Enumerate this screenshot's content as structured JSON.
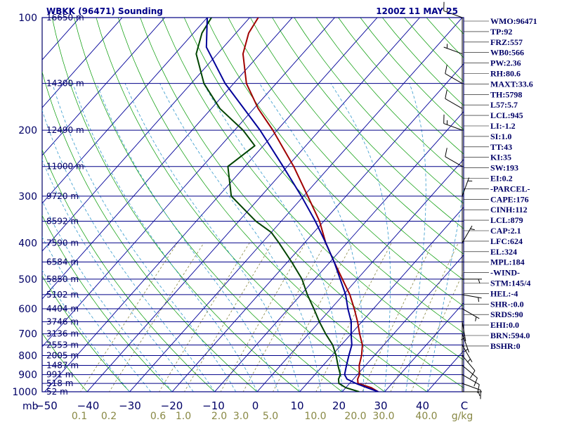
{
  "header": {
    "station": "WBKK (96471) Sounding",
    "time": "1200Z 11 MAY 25"
  },
  "axis": {
    "pressure_unit": "mb",
    "mixing_ratio_unit": "g/kg",
    "temp_ticks": [
      "−50",
      "−40",
      "−30",
      "−20",
      "−10",
      "0",
      "10",
      "20",
      "30",
      "40",
      "C"
    ],
    "mixing_ratio_ticks": [
      "0.1",
      "0.2",
      "0.6",
      "1.0",
      "2.0",
      "3.0",
      "5.0",
      "10.0",
      "20.0",
      "30.0",
      "40.0"
    ]
  },
  "indices": [
    "WMO:96471",
    "TP:92",
    "FRZ:557",
    "WB0:566",
    "PW:2.36",
    "RH:80.6",
    "MAXT:33.6",
    "TH:5798",
    "L57:5.7",
    "LCL:945",
    "LI:-1.2",
    "SI:1.0",
    "TT:43",
    "KI:35",
    "SW:193",
    "EI:0.2",
    "-PARCEL-",
    "CAPE:176",
    "CINH:112",
    "LCL:879",
    "CAP:2.1",
    "LFC:624",
    "EL:324",
    "MPL:184",
    "-WIND-",
    "STM:145/4",
    "HEL:-4",
    "SHR-:0.0",
    "SRDS:90",
    "EHI:0.0",
    "BRN:594.0",
    "BSHR:0"
  ],
  "chart_data": {
    "type": "line",
    "title": "WBKK (96471) Sounding",
    "ylabel": "mb",
    "xlabel": "C",
    "yscale": "log",
    "ylim": [
      1000,
      100
    ],
    "xlim": [
      -50,
      50
    ],
    "pressure_levels": [
      {
        "p": 1000,
        "label": "1000",
        "height": "52 m"
      },
      {
        "p": 950,
        "label": "",
        "height": "518 m"
      },
      {
        "p": 900,
        "label": "900",
        "height": "991 m"
      },
      {
        "p": 850,
        "label": "",
        "height": "1487 m"
      },
      {
        "p": 800,
        "label": "800",
        "height": "2005 m"
      },
      {
        "p": 750,
        "label": "",
        "height": "2553 m"
      },
      {
        "p": 700,
        "label": "700",
        "height": "3136 m"
      },
      {
        "p": 650,
        "label": "",
        "height": "3746 m"
      },
      {
        "p": 600,
        "label": "600",
        "height": "4404 m"
      },
      {
        "p": 550,
        "label": "",
        "height": "5102 m"
      },
      {
        "p": 500,
        "label": "500",
        "height": "5850 m"
      },
      {
        "p": 450,
        "label": "",
        "height": "6584 m"
      },
      {
        "p": 400,
        "label": "400",
        "height": "7590 m"
      },
      {
        "p": 350,
        "label": "",
        "height": "8592 m"
      },
      {
        "p": 300,
        "label": "300",
        "height": "9720 m"
      },
      {
        "p": 250,
        "label": "",
        "height": "11000 m"
      },
      {
        "p": 200,
        "label": "200",
        "height": "12490 m"
      },
      {
        "p": 150,
        "label": "",
        "height": "14300 m"
      },
      {
        "p": 100,
        "label": "100",
        "height": "16650 m"
      }
    ],
    "series": [
      {
        "key": "temperature",
        "color": "#a00000",
        "points": [
          [
            1000,
            28.5
          ],
          [
            975,
            26
          ],
          [
            950,
            22
          ],
          [
            925,
            21
          ],
          [
            900,
            20.5
          ],
          [
            850,
            18.5
          ],
          [
            800,
            17
          ],
          [
            750,
            15
          ],
          [
            700,
            12
          ],
          [
            650,
            9
          ],
          [
            600,
            5.5
          ],
          [
            550,
            1.5
          ],
          [
            500,
            -3.5
          ],
          [
            450,
            -9
          ],
          [
            400,
            -15
          ],
          [
            350,
            -21
          ],
          [
            300,
            -29
          ],
          [
            250,
            -38.5
          ],
          [
            200,
            -51
          ],
          [
            175,
            -59
          ],
          [
            150,
            -67
          ],
          [
            125,
            -74
          ],
          [
            110,
            -77
          ],
          [
            100,
            -78
          ]
        ]
      },
      {
        "key": "dewpoint",
        "color": "#004400",
        "points": [
          [
            1000,
            24
          ],
          [
            975,
            20
          ],
          [
            950,
            17.5
          ],
          [
            925,
            16.5
          ],
          [
            900,
            16
          ],
          [
            850,
            13.5
          ],
          [
            800,
            11
          ],
          [
            750,
            8
          ],
          [
            700,
            4
          ],
          [
            650,
            0
          ],
          [
            600,
            -4
          ],
          [
            550,
            -8.5
          ],
          [
            500,
            -13
          ],
          [
            450,
            -19
          ],
          [
            400,
            -26
          ],
          [
            375,
            -30
          ],
          [
            350,
            -36
          ],
          [
            300,
            -47
          ],
          [
            250,
            -54
          ],
          [
            220,
            -52
          ],
          [
            200,
            -58
          ],
          [
            175,
            -68
          ],
          [
            150,
            -77
          ],
          [
            125,
            -85
          ],
          [
            110,
            -88
          ],
          [
            100,
            -89
          ]
        ]
      },
      {
        "key": "parcel",
        "color": "#000099",
        "points": [
          [
            1000,
            28.5
          ],
          [
            975,
            25
          ],
          [
            950,
            21.5
          ],
          [
            925,
            18.5
          ],
          [
            900,
            17
          ],
          [
            850,
            15.5
          ],
          [
            800,
            14
          ],
          [
            750,
            12.5
          ],
          [
            700,
            10
          ],
          [
            650,
            7.5
          ],
          [
            600,
            4
          ],
          [
            550,
            0.5
          ],
          [
            500,
            -4
          ],
          [
            450,
            -9
          ],
          [
            400,
            -15
          ],
          [
            350,
            -22
          ],
          [
            300,
            -30.5
          ],
          [
            250,
            -41
          ],
          [
            200,
            -54
          ],
          [
            150,
            -72
          ],
          [
            120,
            -84
          ],
          [
            100,
            -90
          ]
        ]
      }
    ],
    "winds": [
      {
        "p": 1000,
        "dir": 90,
        "spd": 5
      },
      {
        "p": 950,
        "dir": 110,
        "spd": 10
      },
      {
        "p": 900,
        "dir": 120,
        "spd": 10
      },
      {
        "p": 850,
        "dir": 130,
        "spd": 10
      },
      {
        "p": 800,
        "dir": 140,
        "spd": 10
      },
      {
        "p": 750,
        "dir": 150,
        "spd": 5
      },
      {
        "p": 700,
        "dir": 160,
        "spd": 5
      },
      {
        "p": 650,
        "dir": 170,
        "spd": 5
      },
      {
        "p": 600,
        "dir": 120,
        "spd": 5
      },
      {
        "p": 550,
        "dir": 100,
        "spd": 5
      },
      {
        "p": 500,
        "dir": 90,
        "spd": 5
      },
      {
        "p": 400,
        "dir": 30,
        "spd": 5
      },
      {
        "p": 300,
        "dir": 20,
        "spd": 5
      },
      {
        "p": 250,
        "dir": 300,
        "spd": 10
      },
      {
        "p": 200,
        "dir": 290,
        "spd": 15
      },
      {
        "p": 175,
        "dir": 300,
        "spd": 10
      },
      {
        "p": 150,
        "dir": 300,
        "spd": 10
      },
      {
        "p": 125,
        "dir": 290,
        "spd": 5
      },
      {
        "p": 100,
        "dir": 290,
        "spd": 15
      }
    ],
    "grid": true
  }
}
